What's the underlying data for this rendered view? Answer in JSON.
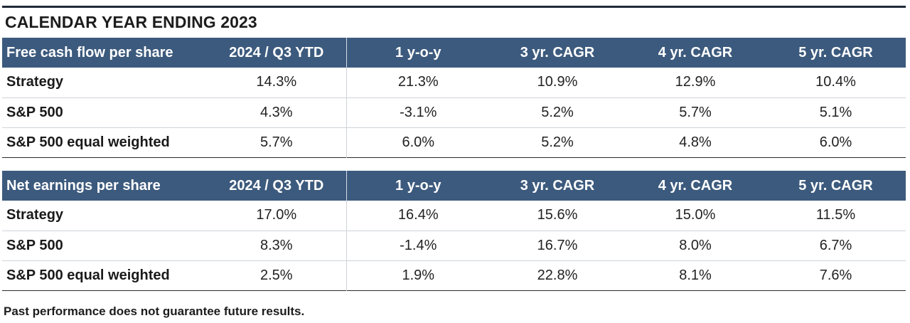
{
  "title": "CALENDAR YEAR ENDING 2023",
  "footnote": "Past performance does not guarantee future results.",
  "colors": {
    "header_bg": "#3c5a7d",
    "header_text": "#ffffff",
    "rule": "#1f2a36"
  },
  "chart_data": {
    "type": "table",
    "title": "CALENDAR YEAR ENDING 2023",
    "tables": [
      {
        "metric": "Free cash flow per share",
        "columns": [
          "2024 / Q3 YTD",
          "1 y-o-y",
          "3 yr. CAGR",
          "4 yr. CAGR",
          "5 yr. CAGR"
        ],
        "rows": [
          {
            "label": "Strategy",
            "values": [
              "14.3%",
              "21.3%",
              "10.9%",
              "12.9%",
              "10.4%"
            ]
          },
          {
            "label": "S&P 500",
            "values": [
              "4.3%",
              "-3.1%",
              "5.2%",
              "5.7%",
              "5.1%"
            ]
          },
          {
            "label": "S&P 500 equal weighted",
            "values": [
              "5.7%",
              "6.0%",
              "5.2%",
              "4.8%",
              "6.0%"
            ]
          }
        ]
      },
      {
        "metric": "Net earnings per share",
        "columns": [
          "2024 / Q3 YTD",
          "1 y-o-y",
          "3 yr. CAGR",
          "4 yr. CAGR",
          "5 yr. CAGR"
        ],
        "rows": [
          {
            "label": "Strategy",
            "values": [
              "17.0%",
              "16.4%",
              "15.6%",
              "15.0%",
              "11.5%"
            ]
          },
          {
            "label": "S&P 500",
            "values": [
              "8.3%",
              "-1.4%",
              "16.7%",
              "8.0%",
              "6.7%"
            ]
          },
          {
            "label": "S&P 500 equal weighted",
            "values": [
              "2.5%",
              "1.9%",
              "22.8%",
              "8.1%",
              "7.6%"
            ]
          }
        ]
      }
    ]
  }
}
